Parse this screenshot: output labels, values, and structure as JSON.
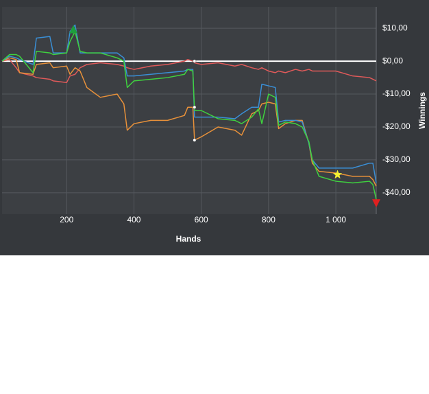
{
  "chart_data": {
    "type": "line",
    "x_label": "Hands",
    "y_label": "Winnings",
    "xlim": [
      8,
      1120
    ],
    "ylim": [
      -46.5,
      16.5
    ],
    "xticks": [
      200,
      400,
      600,
      800,
      {
        "value": 1000,
        "label": "1 000"
      }
    ],
    "yticks": [
      {
        "value": 10,
        "label": "$10,00"
      },
      {
        "value": 0,
        "label": "$0,00"
      },
      {
        "value": -10,
        "label": "-$10,00"
      },
      {
        "value": -20,
        "label": "-$20,00"
      },
      {
        "value": -30,
        "label": "-$30,00"
      },
      {
        "value": -40,
        "label": "-$40,00"
      }
    ],
    "grid": true,
    "zero_line": true,
    "x": [
      8,
      30,
      50,
      60,
      100,
      110,
      150,
      160,
      200,
      210,
      225,
      240,
      260,
      300,
      350,
      370,
      380,
      400,
      450,
      500,
      550,
      560,
      575,
      580,
      600,
      650,
      700,
      720,
      750,
      770,
      780,
      800,
      820,
      830,
      850,
      880,
      900,
      920,
      930,
      950,
      1000,
      1050,
      1100,
      1110,
      1120
    ],
    "series": [
      {
        "color": "#e05a5a",
        "values": [
          0,
          0.5,
          -2,
          -3.5,
          -4.5,
          -5,
          -5.5,
          -6,
          -6.5,
          -4.5,
          -4,
          -2,
          -1,
          -0.5,
          -1,
          -1.5,
          -2,
          -2.5,
          -1.5,
          -1,
          0,
          0.5,
          0,
          -0.5,
          -1,
          -0.5,
          -1.5,
          -1,
          -2,
          -2.5,
          -2,
          -3,
          -3.5,
          -3,
          -3.5,
          -2.5,
          -3,
          -2.5,
          -3,
          -3,
          -3,
          -4.5,
          -5,
          -5.5,
          -6
        ]
      },
      {
        "color": "#e8913a",
        "values": [
          0,
          1,
          0.5,
          -3.5,
          -4,
          -1,
          -0.5,
          -2,
          -1.5,
          -4,
          -2,
          -3,
          -8,
          -11,
          -10,
          -13,
          -21,
          -19,
          -18,
          -18,
          -16.5,
          -14,
          -14,
          -24,
          -23,
          -20,
          -21,
          -22.5,
          -16,
          -15,
          -13,
          -12.5,
          -13,
          -20.5,
          -19,
          -18,
          -18,
          -25,
          -31,
          -33.5,
          -34,
          -35,
          -35,
          -36,
          -38
        ]
      },
      {
        "color": "#3a8fd6",
        "values": [
          0,
          1.5,
          1,
          0.5,
          -1,
          7,
          7.5,
          2.5,
          2.5,
          9,
          11,
          2.5,
          2.5,
          2.5,
          2.5,
          1,
          -4.5,
          -4.5,
          -4,
          -3.5,
          -3,
          -2.5,
          -2.5,
          -17,
          -17,
          -17,
          -17.5,
          -16,
          -14,
          -14,
          -7,
          -7.5,
          -8,
          -18.5,
          -18,
          -18,
          -18.5,
          -25,
          -30,
          -32.5,
          -32.5,
          -32.5,
          -31,
          -31,
          -37
        ]
      },
      {
        "color": "#3fd13f",
        "values": [
          0,
          2,
          2,
          1.5,
          -3.5,
          3,
          2.5,
          2,
          2.5,
          6,
          9,
          3,
          2.5,
          2.5,
          1,
          0,
          -8,
          -6,
          -5.5,
          -5,
          -4,
          -2.5,
          -3,
          -15,
          -15,
          -17.5,
          -18,
          -19,
          -17,
          -14.5,
          -19,
          -10,
          -11,
          -19.5,
          -18.5,
          -19,
          -20,
          -24.5,
          -30,
          -35,
          -36.5,
          -37,
          -36.5,
          -37.5,
          -42
        ]
      }
    ],
    "markers": [
      {
        "x": 220,
        "y": 9.5,
        "shape": "triangle-up",
        "color": "#1e9e3c"
      },
      {
        "x": 1120,
        "y": -43,
        "shape": "triangle-down",
        "color": "#e02020"
      },
      {
        "x": 1005,
        "y": -34.5,
        "shape": "star",
        "color": "#f5f032"
      },
      {
        "x": 580,
        "y": 0,
        "shape": "dot",
        "color": "#ffffff"
      },
      {
        "x": 580,
        "y": -14,
        "shape": "dot",
        "color": "#ffffff"
      },
      {
        "x": 580,
        "y": -24,
        "shape": "dot",
        "color": "#ffffff"
      }
    ]
  }
}
